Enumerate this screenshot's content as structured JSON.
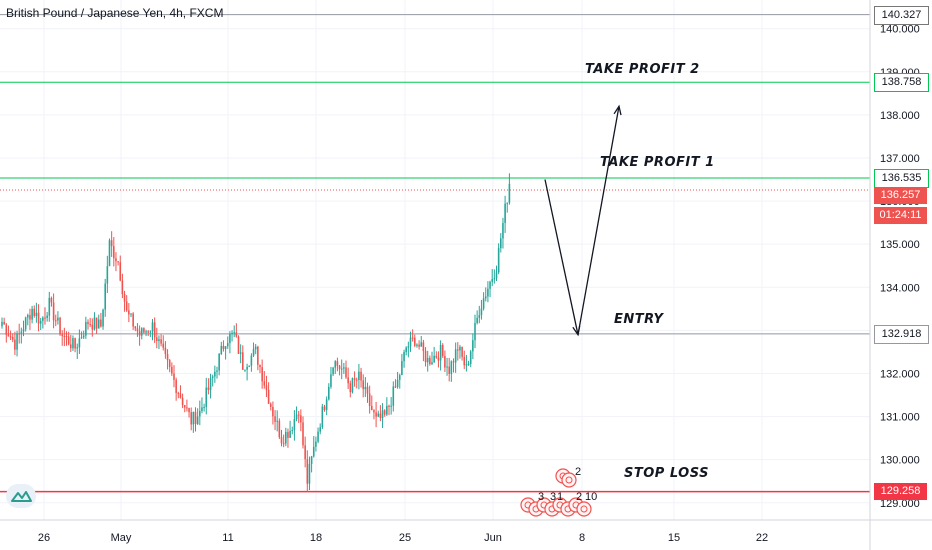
{
  "title": "British Pound / Japanese Yen, 4h, FXCM",
  "logo": {
    "icon": "tradingview-logo-icon"
  },
  "colors": {
    "bull": "#26a69a",
    "bear": "#ef5350",
    "tp": "#00c853",
    "sl": "#f23645",
    "entry": "#9598a1",
    "current": "#ef5350",
    "countdown": "#ef5350"
  },
  "levels": {
    "top": {
      "value": 140.327,
      "label": "140.327"
    },
    "tp2": {
      "value": 138.758,
      "label": "138.758",
      "text": "TAKE PROFIT 2"
    },
    "tp1": {
      "value": 136.535,
      "label": "136.535",
      "text": "TAKE PROFIT 1"
    },
    "current": {
      "value": 136.257,
      "label": "136.257",
      "countdown": "01:24:11"
    },
    "entry": {
      "value": 132.918,
      "label": "132.918",
      "text": "ENTRY"
    },
    "sl": {
      "value": 129.258,
      "label": "129.258",
      "text": "STOP LOSS"
    }
  },
  "events": {
    "upper": [
      "2"
    ],
    "lower": [
      "3",
      "3",
      "1",
      "2",
      "10"
    ]
  },
  "chart_data": {
    "type": "candlestick",
    "title": "British Pound / Japanese Yen, 4h, FXCM",
    "x_ticks": [
      "26",
      "May",
      "11",
      "18",
      "25",
      "Jun",
      "8",
      "15",
      "22"
    ],
    "y_ticks": [
      "129.000",
      "130.000",
      "131.000",
      "132.000",
      "133.000",
      "134.000",
      "135.000",
      "136.000",
      "137.000",
      "138.000",
      "139.000",
      "140.000"
    ],
    "ylim": [
      128.6,
      140.55
    ],
    "projection": [
      [
        136.5,
        132.9
      ],
      [
        138.2
      ]
    ],
    "swings": [
      [
        0,
        133.2
      ],
      [
        6,
        132.7
      ],
      [
        14,
        133.5
      ],
      [
        18,
        133.2
      ],
      [
        22,
        133.6
      ],
      [
        28,
        132.9
      ],
      [
        34,
        132.6
      ],
      [
        40,
        133.2
      ],
      [
        46,
        133.1
      ],
      [
        50,
        135.0
      ],
      [
        54,
        134.6
      ],
      [
        58,
        133.4
      ],
      [
        64,
        132.9
      ],
      [
        70,
        133.1
      ],
      [
        76,
        132.3
      ],
      [
        82,
        131.6
      ],
      [
        88,
        130.9
      ],
      [
        92,
        131.1
      ],
      [
        98,
        131.9
      ],
      [
        104,
        132.8
      ],
      [
        108,
        132.9
      ],
      [
        112,
        132.2
      ],
      [
        118,
        132.5
      ],
      [
        122,
        131.8
      ],
      [
        126,
        131.1
      ],
      [
        130,
        130.5
      ],
      [
        134,
        130.7
      ],
      [
        138,
        131.2
      ],
      [
        142,
        129.5
      ],
      [
        146,
        130.5
      ],
      [
        150,
        131.3
      ],
      [
        154,
        132.3
      ],
      [
        158,
        132.1
      ],
      [
        162,
        131.7
      ],
      [
        166,
        131.9
      ],
      [
        170,
        131.4
      ],
      [
        174,
        130.9
      ],
      [
        178,
        131.0
      ],
      [
        184,
        131.8
      ],
      [
        188,
        132.6
      ],
      [
        192,
        132.8
      ],
      [
        198,
        132.3
      ],
      [
        204,
        132.5
      ],
      [
        208,
        132.1
      ],
      [
        212,
        132.6
      ],
      [
        216,
        132.1
      ],
      [
        222,
        133.5
      ],
      [
        226,
        134.0
      ],
      [
        230,
        134.5
      ],
      [
        234,
        135.8
      ],
      [
        236,
        136.4
      ]
    ]
  }
}
